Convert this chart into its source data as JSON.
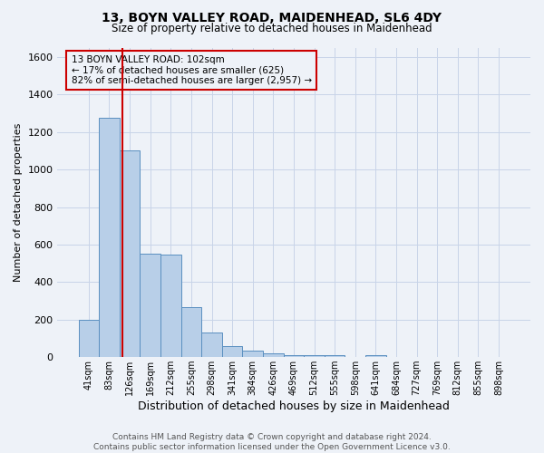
{
  "title": "13, BOYN VALLEY ROAD, MAIDENHEAD, SL6 4DY",
  "subtitle": "Size of property relative to detached houses in Maidenhead",
  "xlabel": "Distribution of detached houses by size in Maidenhead",
  "ylabel": "Number of detached properties",
  "categories": [
    "41sqm",
    "83sqm",
    "126sqm",
    "169sqm",
    "212sqm",
    "255sqm",
    "298sqm",
    "341sqm",
    "384sqm",
    "426sqm",
    "469sqm",
    "512sqm",
    "555sqm",
    "598sqm",
    "641sqm",
    "684sqm",
    "727sqm",
    "769sqm",
    "812sqm",
    "855sqm",
    "898sqm"
  ],
  "values": [
    198,
    1275,
    1100,
    550,
    545,
    268,
    130,
    60,
    33,
    18,
    11,
    10,
    9,
    0,
    11,
    0,
    0,
    0,
    0,
    0,
    0
  ],
  "bar_color": "#b8cfe8",
  "bar_edge_color": "#5a8fc0",
  "bar_linewidth": 0.7,
  "redline_x": 1.62,
  "redline_color": "#cc0000",
  "redline_linewidth": 1.5,
  "annotation_text": "13 BOYN VALLEY ROAD: 102sqm\n← 17% of detached houses are smaller (625)\n82% of semi-detached houses are larger (2,957) →",
  "annotation_box_color": "#cc0000",
  "annotation_text_fontsize": 7.5,
  "ylim": [
    0,
    1650
  ],
  "yticks": [
    0,
    200,
    400,
    600,
    800,
    1000,
    1200,
    1400,
    1600
  ],
  "grid_color": "#c8d4e8",
  "bg_color": "#eef2f8",
  "footer_line1": "Contains HM Land Registry data © Crown copyright and database right 2024.",
  "footer_line2": "Contains public sector information licensed under the Open Government Licence v3.0.",
  "footer_fontsize": 6.5,
  "title_fontsize": 10,
  "subtitle_fontsize": 8.5,
  "ylabel_fontsize": 8,
  "xlabel_fontsize": 9
}
